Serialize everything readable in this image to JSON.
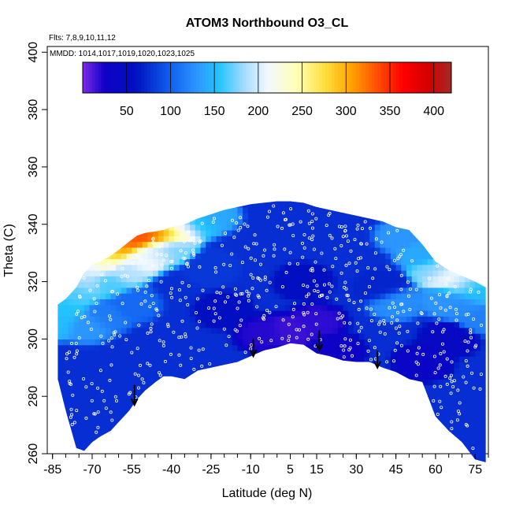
{
  "chart_data": {
    "type": "heatmap",
    "title": "ATOM3 Northbound O3_CL",
    "annotations": {
      "flights": "Flts: 7,8,9,10,11,12",
      "dates": "MMDD: 1014,1017,1019,1020,1023,1025"
    },
    "xlabel": "Latitude (deg N)",
    "ylabel": "Theta (C)",
    "xlim": [
      -87,
      80
    ],
    "ylim": [
      260,
      402
    ],
    "x_ticks": [
      -85,
      -70,
      -55,
      -40,
      -25,
      -10,
      5,
      15,
      30,
      45,
      60,
      75
    ],
    "x_tick_labels": [
      "-85",
      "-70",
      "-55",
      "-40",
      "-25",
      "-10",
      "5",
      "15",
      "30",
      "45",
      "60",
      "75"
    ],
    "y_ticks": [
      260,
      280,
      300,
      320,
      340,
      360,
      380,
      400
    ],
    "y_tick_labels": [
      "260",
      "280",
      "300",
      "320",
      "340",
      "360",
      "380",
      "400"
    ],
    "colorbar": {
      "min": 0,
      "max": 420,
      "ticks": [
        50,
        100,
        150,
        200,
        250,
        300,
        350,
        400
      ],
      "tick_labels": [
        "50",
        "100",
        "150",
        "200",
        "250",
        "300",
        "350",
        "400"
      ],
      "stops": [
        {
          "v": 0,
          "c": "#7b2ce8"
        },
        {
          "v": 25,
          "c": "#1000c8"
        },
        {
          "v": 60,
          "c": "#0010c0"
        },
        {
          "v": 100,
          "c": "#1060f0"
        },
        {
          "v": 130,
          "c": "#2c96ff"
        },
        {
          "v": 155,
          "c": "#22c4ff"
        },
        {
          "v": 185,
          "c": "#a8dcff"
        },
        {
          "v": 210,
          "c": "#f2f8ff"
        },
        {
          "v": 245,
          "c": "#ffffb4"
        },
        {
          "v": 275,
          "c": "#ffe040"
        },
        {
          "v": 305,
          "c": "#ffa500"
        },
        {
          "v": 335,
          "c": "#ff5000"
        },
        {
          "v": 365,
          "c": "#ff0000"
        },
        {
          "v": 395,
          "c": "#d20000"
        },
        {
          "v": 420,
          "c": "#a42a2a"
        }
      ]
    },
    "coverage": {
      "lat": [
        -83,
        -80,
        -76,
        -73,
        -70,
        -67,
        -63,
        -60,
        -56,
        -53,
        -50,
        -46,
        -43,
        -40,
        -35,
        -30,
        -25,
        -20,
        -15,
        -10,
        -5,
        0,
        5,
        10,
        15,
        20,
        25,
        30,
        35,
        40,
        45,
        50,
        55,
        60,
        65,
        70,
        75,
        79
      ],
      "bottom": [
        286,
        275,
        262,
        261,
        264,
        266,
        268,
        271,
        275,
        279,
        282,
        285,
        287,
        287,
        286,
        289,
        290,
        291,
        292,
        294,
        296,
        297,
        298.5,
        298,
        295,
        294,
        292.5,
        292,
        292,
        290,
        288.5,
        286,
        285,
        273,
        268,
        264,
        258,
        257
      ],
      "top": [
        312,
        314,
        318,
        323,
        326,
        327,
        329,
        331,
        334,
        336,
        337,
        337.5,
        338,
        339,
        340,
        342,
        343.5,
        345,
        346,
        347,
        347.5,
        348,
        348,
        347.5,
        346,
        345,
        344,
        343,
        342,
        341,
        339,
        338,
        333,
        327,
        324,
        322,
        320,
        318
      ]
    },
    "series": [
      {
        "name": "ozone_gradient",
        "points": [
          {
            "lat": -83,
            "theta": 306,
            "o3": 150
          },
          {
            "lat": -80,
            "theta": 310,
            "o3": 155
          },
          {
            "lat": -76,
            "theta": 316,
            "o3": 165
          },
          {
            "lat": -73,
            "theta": 320,
            "o3": 185
          },
          {
            "lat": -70,
            "theta": 324,
            "o3": 205
          },
          {
            "lat": -66,
            "theta": 327,
            "o3": 240
          },
          {
            "lat": -62,
            "theta": 330,
            "o3": 285
          },
          {
            "lat": -58,
            "theta": 333,
            "o3": 315
          },
          {
            "lat": -55,
            "theta": 335,
            "o3": 330
          },
          {
            "lat": -52,
            "theta": 336,
            "o3": 340
          },
          {
            "lat": -48,
            "theta": 336,
            "o3": 330
          },
          {
            "lat": -44,
            "theta": 337,
            "o3": 310
          },
          {
            "lat": -40,
            "theta": 337,
            "o3": 270
          },
          {
            "lat": -36,
            "theta": 339,
            "o3": 200
          },
          {
            "lat": -30,
            "theta": 341,
            "o3": 155
          },
          {
            "lat": -25,
            "theta": 343,
            "o3": 140
          },
          {
            "lat": -64,
            "theta": 320,
            "o3": 165
          },
          {
            "lat": -58,
            "theta": 324,
            "o3": 190
          },
          {
            "lat": -52,
            "theta": 328,
            "o3": 210
          },
          {
            "lat": -46,
            "theta": 331,
            "o3": 200
          },
          {
            "lat": -40,
            "theta": 332,
            "o3": 175
          },
          {
            "lat": 48,
            "theta": 336,
            "o3": 130
          },
          {
            "lat": 55,
            "theta": 330,
            "o3": 140
          },
          {
            "lat": 60,
            "theta": 324,
            "o3": 175
          },
          {
            "lat": 64,
            "theta": 322,
            "o3": 215
          },
          {
            "lat": 68,
            "theta": 320,
            "o3": 200
          },
          {
            "lat": 72,
            "theta": 318,
            "o3": 165
          },
          {
            "lat": 76,
            "theta": 316,
            "o3": 150
          },
          {
            "lat": 64,
            "theta": 314,
            "o3": 130
          },
          {
            "lat": 70,
            "theta": 312,
            "o3": 125
          },
          {
            "lat": 77,
            "theta": 308,
            "o3": 118
          },
          {
            "lat": 45,
            "theta": 313,
            "o3": 125
          },
          {
            "lat": -72,
            "theta": 305,
            "o3": 130
          },
          {
            "lat": -65,
            "theta": 308,
            "o3": 115
          },
          {
            "lat": -55,
            "theta": 312,
            "o3": 105
          },
          {
            "lat": -20,
            "theta": 310,
            "o3": 55
          },
          {
            "lat": -5,
            "theta": 302,
            "o3": 20
          },
          {
            "lat": 5,
            "theta": 303,
            "o3": 15
          },
          {
            "lat": 15,
            "theta": 306,
            "o3": 18
          },
          {
            "lat": 22,
            "theta": 296,
            "o3": 30
          },
          {
            "lat": 55,
            "theta": 292,
            "o3": 35
          },
          {
            "lat": 65,
            "theta": 300,
            "o3": 45
          },
          {
            "lat": 40,
            "theta": 318,
            "o3": 70
          },
          {
            "lat": 10,
            "theta": 320,
            "o3": 55
          },
          {
            "lat": -25,
            "theta": 325,
            "o3": 80
          }
        ]
      }
    ],
    "arrows": [
      {
        "lat": -54,
        "theta": 284,
        "length": 7
      },
      {
        "lat": -9,
        "theta": 300,
        "length": 6
      },
      {
        "lat": 16,
        "theta": 303,
        "length": 7
      },
      {
        "lat": 38,
        "theta": 296,
        "length": 6
      }
    ],
    "background_value": 75,
    "sample_marker_count": 560,
    "cell_size_deg": [
      2,
      2
    ]
  }
}
